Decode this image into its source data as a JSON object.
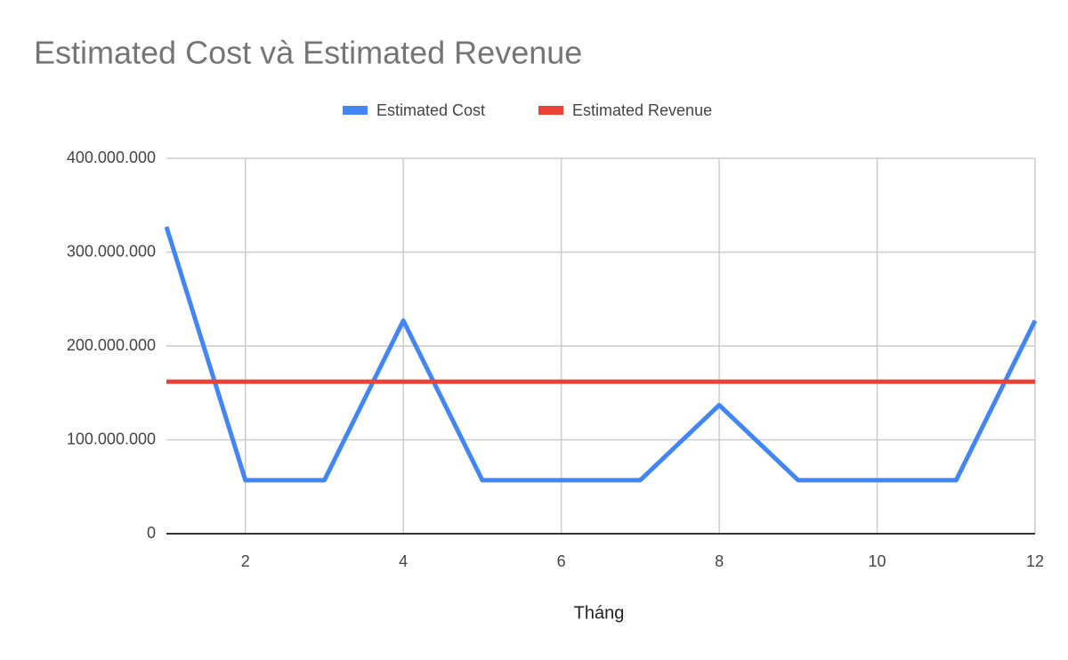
{
  "chart_data": {
    "type": "line",
    "title": "Estimated Cost và Estimated Revenue",
    "x_label": "Tháng",
    "x": [
      1,
      2,
      3,
      4,
      5,
      6,
      7,
      8,
      9,
      10,
      11,
      12
    ],
    "series": [
      {
        "name": "Estimated Cost",
        "color": "#4285f4",
        "values": [
          327000000,
          57000000,
          57000000,
          227000000,
          57000000,
          57000000,
          57000000,
          137000000,
          57000000,
          57000000,
          57000000,
          227000000
        ]
      },
      {
        "name": "Estimated Revenue",
        "color": "#ea4335",
        "values": [
          162000000,
          162000000,
          162000000,
          162000000,
          162000000,
          162000000,
          162000000,
          162000000,
          162000000,
          162000000,
          162000000,
          162000000
        ]
      }
    ],
    "xlim": [
      1,
      12
    ],
    "xticks": [
      2,
      4,
      6,
      8,
      10,
      12
    ],
    "ylim": [
      0,
      400000000
    ],
    "yticks": [
      0,
      {
        "value": 100000000,
        "label": "100.000.000"
      },
      {
        "value": 200000000,
        "label": "200.000.000"
      },
      {
        "value": 300000000,
        "label": "300.000.000"
      },
      {
        "value": 400000000,
        "label": "400.000.000"
      }
    ],
    "grid": true,
    "legend": "top"
  }
}
